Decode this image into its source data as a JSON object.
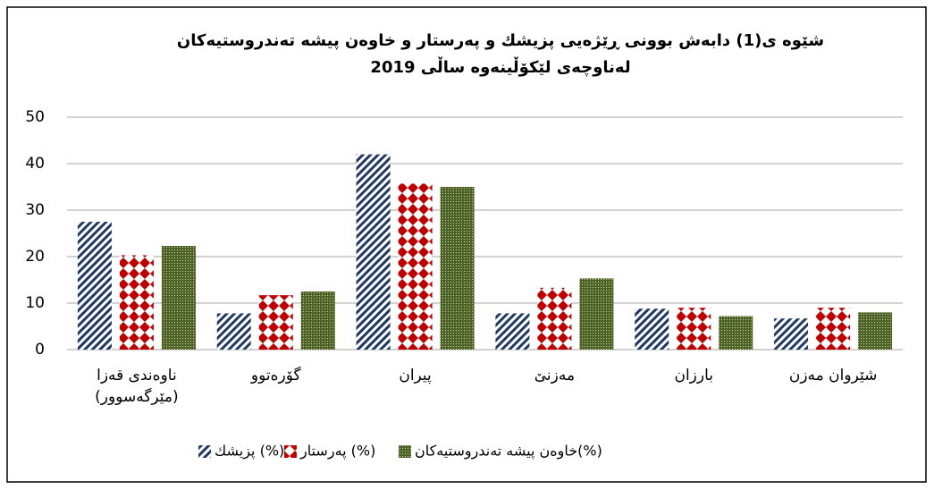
{
  "chart_data": {
    "type": "bar",
    "title": [
      "شێوە ی(1) دابەش بوونی ڕێژەیی پزیشك و پەرستار و خاوەن پیشە تەندروستیەكان",
      "لەناوچەی لێكۆڵینەوە ساڵی 2019"
    ],
    "categories": [
      "ناوەندی قەزا (مێرگەسوور)",
      "گۆرەتوو",
      "پیران",
      "مەزنێ",
      "بارزان",
      "شێروان مەزن"
    ],
    "series": [
      {
        "name": "پزیشك (%)",
        "color": "#1f3864",
        "values": [
          27.5,
          7.8,
          42,
          7.8,
          8.8,
          6.7
        ]
      },
      {
        "name": "پەرستار (%)",
        "color": "#c00000",
        "values": [
          20.3,
          11.7,
          35.7,
          13.3,
          9,
          9
        ]
      },
      {
        "name": "خاوەن پیشە تەندروستیەكان(%)",
        "color": "#4f6228",
        "values": [
          22.3,
          12.5,
          35,
          15.3,
          7.2,
          8
        ]
      }
    ],
    "ylim": [
      0,
      50
    ],
    "yticks": [
      0,
      10,
      20,
      30,
      40,
      50
    ],
    "grid": true,
    "legend": "bottom"
  }
}
